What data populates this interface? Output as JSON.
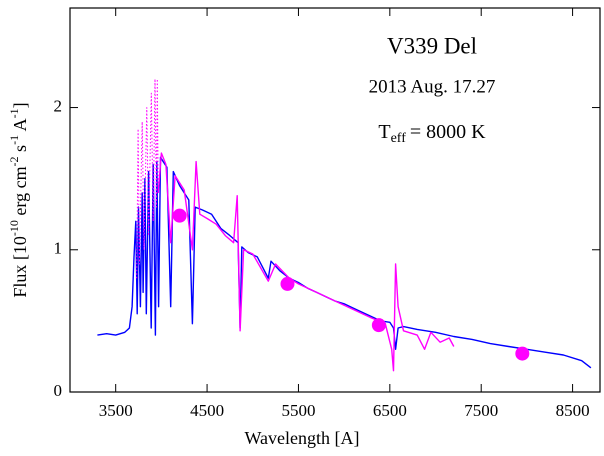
{
  "chart_data": {
    "type": "line",
    "annotations": [
      "V339 Del",
      "2013 Aug. 17.27"
    ],
    "teff": [
      "T",
      "eff",
      "= 8000 K"
    ],
    "x_label": "Wavelength [A]",
    "y_label": [
      "Flux [10",
      "-10",
      " erg cm",
      "-2",
      " s",
      "-1",
      " A",
      "-1",
      "]"
    ],
    "xlim": [
      3000,
      8800
    ],
    "ylim": [
      0,
      2.7
    ],
    "xticks": [
      3500,
      4500,
      5500,
      6500,
      7500,
      8500
    ],
    "yticks": [
      0,
      1,
      2
    ],
    "series": [
      {
        "color": "#0000ff",
        "style": "solid",
        "x": [
          3300,
          3400,
          3500,
          3600,
          3650,
          3680,
          3700,
          3720,
          3735,
          3750,
          3770,
          3790,
          3800,
          3820,
          3835,
          3860,
          3889,
          3910,
          3935,
          3950,
          3970,
          3990,
          4020,
          4060,
          4102,
          4130,
          4200,
          4300,
          4340,
          4370,
          4450,
          4550,
          4650,
          4750,
          4840,
          4861,
          4880,
          4950,
          5050,
          5170,
          5200,
          5300,
          5400,
          5500,
          5600,
          5700,
          5800,
          5900,
          6000,
          6100,
          6200,
          6300,
          6400,
          6500,
          6540,
          6563,
          6590,
          6650,
          6800,
          7000,
          7200,
          7400,
          7600,
          7800,
          8000,
          8200,
          8400,
          8600,
          8700
        ],
        "values": [
          0.4,
          0.41,
          0.4,
          0.42,
          0.45,
          0.6,
          0.95,
          1.2,
          0.55,
          1.3,
          0.6,
          1.4,
          0.7,
          1.5,
          0.55,
          1.55,
          0.45,
          1.6,
          0.4,
          1.62,
          0.6,
          1.65,
          1.62,
          1.58,
          0.6,
          1.55,
          1.45,
          1.35,
          0.48,
          1.3,
          1.28,
          1.25,
          1.15,
          1.1,
          1.05,
          0.45,
          1.02,
          0.98,
          0.95,
          0.8,
          0.92,
          0.85,
          0.8,
          0.77,
          0.73,
          0.7,
          0.67,
          0.64,
          0.62,
          0.59,
          0.56,
          0.53,
          0.5,
          0.49,
          0.45,
          0.3,
          0.45,
          0.46,
          0.44,
          0.42,
          0.39,
          0.37,
          0.34,
          0.32,
          0.3,
          0.28,
          0.26,
          0.22,
          0.17
        ]
      },
      {
        "color": "#ff00ff",
        "style": "dotted",
        "x": [
          3730,
          3745,
          3760,
          3790,
          3810,
          3840,
          3860,
          3890,
          3910,
          3930,
          3945,
          3955,
          3965
        ],
        "values": [
          0.8,
          1.85,
          0.9,
          1.9,
          1.0,
          2.0,
          1.1,
          2.1,
          1.2,
          2.2,
          1.3,
          2.2,
          1.4
        ]
      },
      {
        "color": "#ff00ff",
        "style": "solid",
        "x": [
          3965,
          4000,
          4050,
          4102,
          4150,
          4250,
          4340,
          4380,
          4420,
          4500,
          4600,
          4700,
          4790,
          4830,
          4861,
          4900,
          5000,
          5170,
          5250,
          5400,
          5500,
          5700,
          5900,
          6100,
          6300,
          6450,
          6520,
          6540,
          6563,
          6590,
          6650,
          6800,
          6880,
          6950,
          7050,
          7150,
          7200
        ],
        "values": [
          1.4,
          1.68,
          1.6,
          1.05,
          1.52,
          1.42,
          1.0,
          1.62,
          1.25,
          1.22,
          1.18,
          1.1,
          1.05,
          1.38,
          0.43,
          1.0,
          0.97,
          0.78,
          0.9,
          0.8,
          0.76,
          0.7,
          0.64,
          0.58,
          0.52,
          0.48,
          0.3,
          0.15,
          0.9,
          0.6,
          0.43,
          0.4,
          0.3,
          0.42,
          0.35,
          0.38,
          0.32
        ]
      }
    ],
    "points": {
      "color": "#ff00ff",
      "x": [
        4200,
        5380,
        6380,
        7950
      ],
      "values": [
        1.24,
        0.76,
        0.47,
        0.27
      ]
    }
  }
}
